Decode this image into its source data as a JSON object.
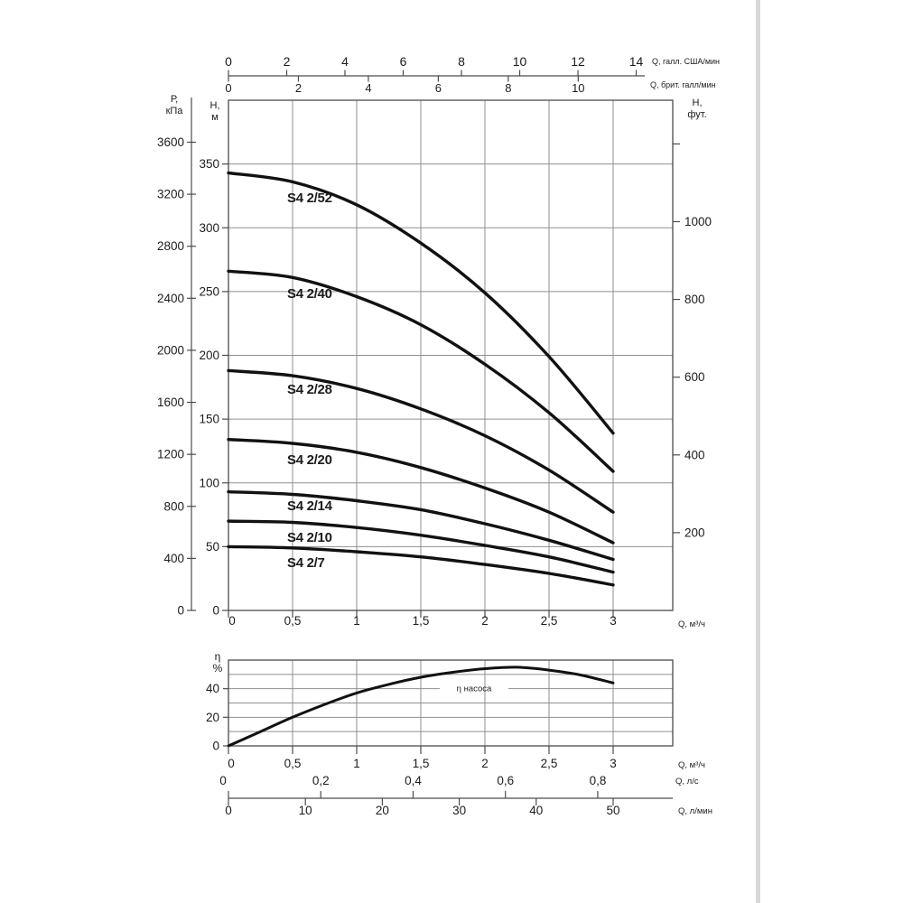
{
  "page": {
    "background": "#ffffff",
    "edge_band_color": "#d8d8d8"
  },
  "chart_data": [
    {
      "id": "head_chart",
      "type": "line",
      "title": "",
      "x_values_m3h": [
        0,
        0.5,
        1,
        1.5,
        2,
        2.5,
        3
      ],
      "series": [
        {
          "name": "S4 2/52",
          "values_m": [
            343,
            336,
            318,
            288,
            249,
            199,
            139
          ]
        },
        {
          "name": "S4 2/40",
          "values_m": [
            266,
            261,
            246,
            224,
            193,
            155,
            109
          ]
        },
        {
          "name": "S4 2/28",
          "values_m": [
            188,
            184,
            174,
            158,
            137,
            110,
            77
          ]
        },
        {
          "name": "S4 2/20",
          "values_m": [
            134,
            131,
            124,
            112,
            96,
            77,
            53
          ]
        },
        {
          "name": "S4 2/14",
          "values_m": [
            93,
            91,
            86,
            79,
            68,
            55,
            40
          ]
        },
        {
          "name": "S4 2/10",
          "values_m": [
            70,
            69,
            65,
            59,
            51,
            42,
            30
          ]
        },
        {
          "name": "S4 2/7",
          "values_m": [
            50,
            49,
            46,
            42,
            36,
            29,
            20
          ]
        }
      ],
      "ylim_m": [
        0,
        400
      ],
      "xlim_m3h": [
        0,
        3.46
      ],
      "grid": true,
      "axes": {
        "pressure_kpa": {
          "title_lines": [
            "Р,",
            "кПа"
          ],
          "ticks": [
            "3600",
            "3200",
            "2800",
            "2400",
            "2000",
            "1600",
            "1200",
            "800",
            "400",
            "0"
          ]
        },
        "head_m": {
          "title_lines": [
            "Н,",
            "м"
          ],
          "ticks": [
            "350",
            "300",
            "250",
            "200",
            "150",
            "100",
            "50",
            "0"
          ]
        },
        "head_ft": {
          "title_lines": [
            "Н,",
            "фут."
          ],
          "ticks": [
            "1000",
            "800",
            "600",
            "400",
            "200"
          ],
          "unlabeled_tick": "1200"
        },
        "flow_us_gpm": {
          "unit": "Q, галл. США/мин",
          "ticks": [
            "0",
            "2",
            "4",
            "6",
            "8",
            "10",
            "12",
            "14"
          ]
        },
        "flow_imp_gpm": {
          "unit": "Q, брит. галл/мин",
          "ticks": [
            "0",
            "2",
            "4",
            "6",
            "8",
            "10"
          ]
        },
        "flow_m3h": {
          "unit": "Q, м³/ч",
          "ticks": [
            "0",
            "0,5",
            "1",
            "1,5",
            "2",
            "2,5",
            "3"
          ]
        }
      }
    },
    {
      "id": "efficiency_chart",
      "type": "line",
      "series": [
        {
          "name": "η насоса",
          "x_m3h": [
            0,
            0.25,
            0.5,
            0.75,
            1,
            1.25,
            1.5,
            1.75,
            2,
            2.25,
            2.5,
            2.75,
            3
          ],
          "values_pct": [
            0,
            10,
            20,
            29,
            37,
            43,
            48,
            51.5,
            54,
            55,
            53,
            49.5,
            44
          ]
        }
      ],
      "ylim_pct": [
        0,
        60
      ],
      "grid": true,
      "axes": {
        "eta_pct": {
          "title_lines": [
            "η",
            "%"
          ],
          "ticks": [
            "40",
            "20",
            "0"
          ]
        },
        "flow_m3h": {
          "unit": "Q, м³/ч",
          "ticks": [
            "0",
            "0,5",
            "1",
            "1,5",
            "2",
            "2,5",
            "3"
          ]
        },
        "flow_lps": {
          "unit": "Q, л/с",
          "ticks": [
            "0",
            "0,2",
            "0,4",
            "0,6",
            "0,8"
          ]
        },
        "flow_lpm": {
          "unit": "Q, л/мин",
          "ticks": [
            "0",
            "10",
            "20",
            "30",
            "40",
            "50"
          ]
        }
      }
    }
  ]
}
